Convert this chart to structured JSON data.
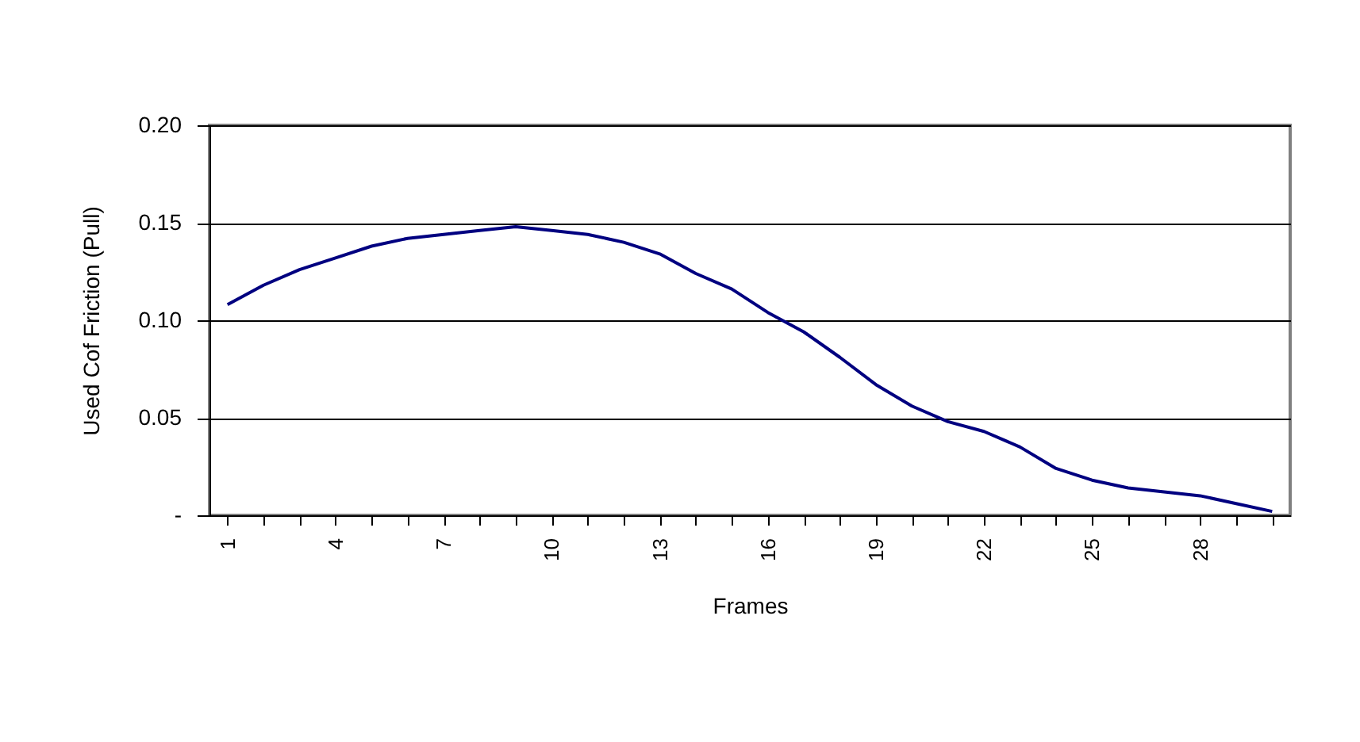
{
  "chart_data": {
    "type": "line",
    "xlabel": "Frames",
    "ylabel": "Used Cof Friction  (Pull)",
    "categories": [
      "1",
      null,
      null,
      "4",
      null,
      null,
      "7",
      null,
      null,
      "10",
      null,
      null,
      "13",
      null,
      null,
      "16",
      null,
      null,
      "19",
      null,
      null,
      "22",
      null,
      null,
      "25",
      null,
      null,
      "28",
      null,
      null
    ],
    "series": [
      {
        "color": "#000080",
        "values": [
          0.108,
          0.118,
          0.126,
          0.132,
          0.138,
          0.142,
          0.144,
          0.146,
          0.148,
          0.146,
          0.144,
          0.14,
          0.134,
          0.124,
          0.116,
          0.104,
          0.094,
          0.081,
          0.067,
          0.056,
          0.048,
          0.043,
          0.035,
          0.024,
          0.018,
          0.014,
          0.012,
          0.01,
          0.006,
          0.002
        ]
      }
    ],
    "ylim": [
      0,
      0.2
    ],
    "yticks": [
      {
        "value": 0,
        "label": "-"
      },
      {
        "value": 0.05,
        "label": "0.05"
      },
      {
        "value": 0.1,
        "label": "0.10"
      },
      {
        "value": 0.15,
        "label": "0.15"
      },
      {
        "value": 0.2,
        "label": "0.20"
      }
    ],
    "grid": "y",
    "marker": "none",
    "line_style": "solid"
  }
}
